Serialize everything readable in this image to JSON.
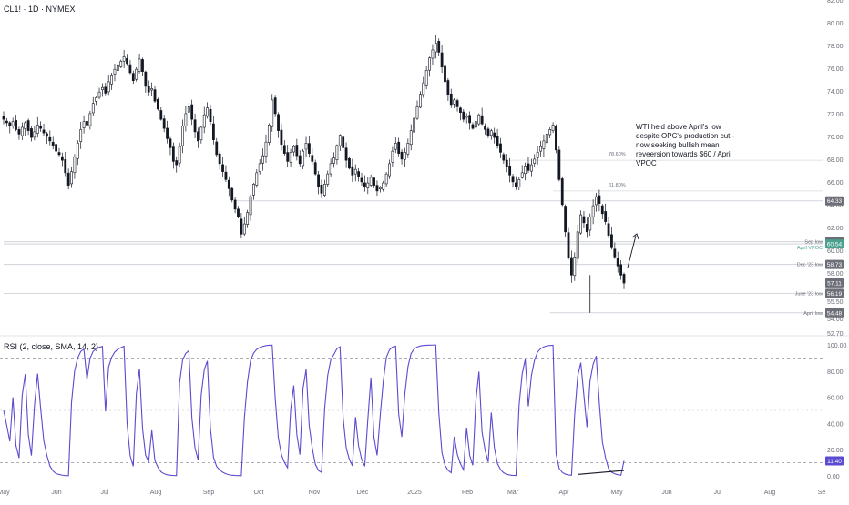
{
  "symbol_title": "CL1! · 1D · NYMEX",
  "rsi_title": "RSI (2, close, SMA, 14, 2)",
  "colors": {
    "candle": "#131722",
    "rsi_line": "#5b4bd0",
    "level_line": "#c9ccd4",
    "badge_dark": "#6c6f77",
    "badge_green": "#4aa18d",
    "badge_green_text": "#4aa18d",
    "axis_text": "#6a6d78",
    "grid_dashed": "#9ea2ab"
  },
  "chart_data": [
    {
      "type": "candlestick",
      "title": "CL1! · 1D · NYMEX",
      "ylim": [
        52.7,
        82.0
      ],
      "y_ticks": [
        "82.00",
        "80.00",
        "78.00",
        "76.00",
        "74.00",
        "72.00",
        "70.00",
        "68.00",
        "66.00",
        "64.00",
        "62.00",
        "60.00",
        "58.00",
        "55.50",
        "54.00",
        "52.70"
      ],
      "x_ticks": [
        "May",
        "Jun",
        "Jul",
        "Aug",
        "Sep",
        "Oct",
        "Nov",
        "Dec",
        "2025",
        "Feb",
        "Mar",
        "Apr",
        "May",
        "Jun",
        "Jul",
        "Aug",
        "Se"
      ],
      "price_path_daily_close": [
        71.5,
        71.2,
        70.9,
        71.3,
        70.6,
        70.2,
        70.8,
        71.2,
        70.5,
        69.9,
        70.4,
        71.0,
        70.7,
        70.3,
        70.0,
        69.6,
        69.2,
        68.7,
        68.4,
        67.9,
        66.8,
        65.7,
        66.9,
        68.2,
        69.4,
        70.6,
        71.3,
        71.0,
        72.0,
        72.9,
        73.4,
        73.9,
        74.3,
        73.8,
        74.8,
        75.4,
        75.9,
        76.3,
        76.6,
        77.0,
        76.4,
        75.6,
        74.9,
        75.9,
        76.8,
        75.7,
        74.4,
        73.9,
        74.2,
        73.1,
        72.4,
        71.5,
        70.7,
        69.8,
        69.0,
        67.8,
        67.5,
        69.1,
        70.9,
        72.0,
        72.6,
        71.5,
        70.4,
        69.6,
        70.8,
        71.9,
        72.5,
        71.3,
        69.7,
        68.4,
        67.6,
        66.9,
        66.2,
        65.4,
        64.4,
        63.6,
        62.9,
        61.4,
        62.3,
        63.3,
        64.7,
        65.8,
        66.8,
        67.6,
        68.3,
        69.5,
        71.0,
        73.2,
        72.0,
        70.5,
        69.3,
        68.5,
        67.8,
        68.6,
        69.1,
        68.3,
        67.6,
        68.7,
        69.4,
        68.5,
        67.8,
        66.7,
        65.6,
        65.0,
        65.8,
        66.7,
        67.6,
        68.1,
        69.2,
        70.1,
        69.0,
        67.9,
        67.2,
        66.6,
        67.1,
        66.5,
        66.0,
        65.6,
        65.9,
        66.4,
        65.7,
        65.2,
        65.5,
        65.9,
        66.7,
        67.6,
        68.7,
        69.4,
        68.5,
        68.0,
        68.6,
        69.4,
        70.5,
        71.6,
        72.6,
        73.7,
        74.7,
        75.8,
        76.9,
        77.6,
        78.2,
        77.4,
        76.1,
        74.8,
        73.7,
        72.8,
        73.2,
        72.6,
        72.1,
        71.5,
        71.8,
        71.2,
        70.7,
        71.3,
        71.9,
        71.1,
        70.6,
        70.1,
        70.5,
        69.9,
        69.2,
        68.6,
        67.9,
        67.3,
        66.6,
        66.0,
        65.6,
        66.2,
        66.8,
        67.4,
        67.0,
        67.5,
        68.0,
        68.6,
        69.1,
        69.6,
        70.2,
        70.6,
        71.0,
        68.8,
        66.2,
        64.0,
        61.6,
        59.3,
        57.8,
        59.4,
        61.6,
        63.1,
        62.4,
        61.6,
        62.9,
        63.9,
        64.7,
        64.1,
        63.2,
        62.5,
        61.3,
        60.2,
        59.4,
        58.6,
        57.8,
        57.1
      ]
    },
    {
      "type": "line",
      "title": "RSI (2, close, SMA, 14, 2)",
      "ylim": [
        -5,
        105
      ],
      "y_ticks": [
        "100.00",
        "80.00",
        "60.00",
        "40.00",
        "20.00",
        "0.00"
      ],
      "bands": [
        90,
        10
      ],
      "last_value": "11.40"
    }
  ],
  "price_badges": [
    {
      "price": 80.0,
      "label": "80.00",
      "style": "plain"
    },
    {
      "price": 64.33,
      "label": "64.33",
      "style": "dark"
    },
    {
      "price": 60.73,
      "label": "60.73",
      "style": "dark"
    },
    {
      "price": 60.54,
      "label": "60.54",
      "style": "green"
    },
    {
      "price": 58.73,
      "label": "58.73",
      "style": "dark"
    },
    {
      "price": 57.11,
      "label": "57.11",
      "style": "dark"
    },
    {
      "price": 56.19,
      "label": "56.19",
      "style": "dark"
    },
    {
      "price": 54.48,
      "label": "54.48",
      "style": "dark"
    }
  ],
  "level_labels": {
    "sep_low": "Sep low",
    "april_vpoc": "April VPOC",
    "dec_low": "Dec '23 low",
    "june_low": "June '23 low",
    "april_low": "April low",
    "fib_786": "78.60%",
    "fib_618": "61.80%"
  },
  "annotation": "WTI held above April's low despite OPC's production cut - now seeking bullish mean reveersion towards $60 / April VPOC",
  "annotation_lines": [
    "WTI held above April's low",
    "despite OPC's production cut -",
    "now seeking bullish mean",
    "reveersion towards $60 / April",
    "VPOC"
  ]
}
